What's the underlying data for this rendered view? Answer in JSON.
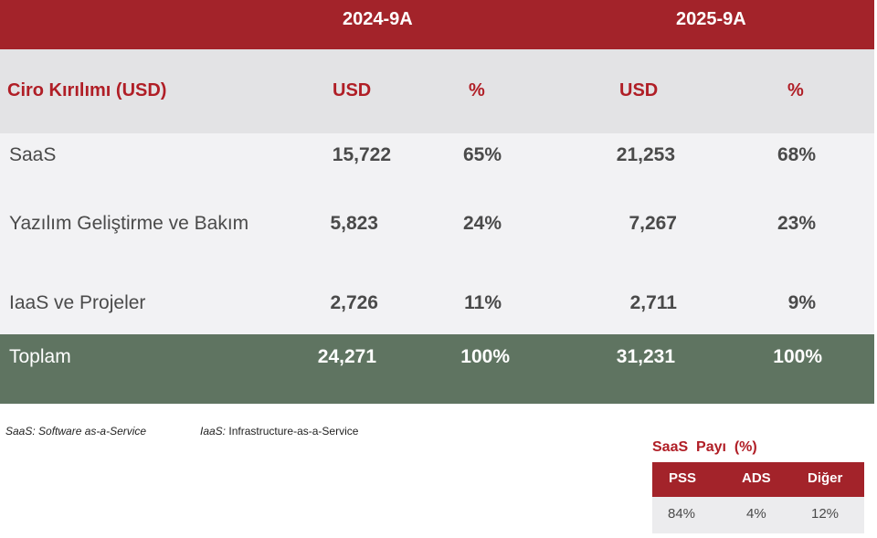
{
  "header": {
    "period_1": "2024-9A",
    "period_2": "2025-9A"
  },
  "columns": {
    "title": "Ciro Kırılımı (USD)",
    "usd_1": "USD",
    "pct_1": "%",
    "usd_2": "USD",
    "pct_2": "%"
  },
  "rows": [
    {
      "label": "SaaS",
      "usd_2024": "15,722",
      "pct_2024": "65%",
      "usd_2025": "21,253",
      "pct_2025": "68%"
    },
    {
      "label": "Yazılım Geliştirme ve Bakım",
      "usd_2024": "5,823",
      "pct_2024": "24%",
      "usd_2025": "7,267",
      "pct_2025": "23%"
    },
    {
      "label": "IaaS ve Projeler",
      "usd_2024": "2,726",
      "pct_2024": "11%",
      "usd_2025": "2,711",
      "pct_2025": "9%"
    }
  ],
  "total": {
    "label": "Toplam",
    "usd_2024": "24,271",
    "pct_2024": "100%",
    "usd_2025": "31,231",
    "pct_2025": "100%"
  },
  "footnotes": {
    "saas_abbr": "SaaS:",
    "saas_text": "Software as-a-Service",
    "iaas_abbr": "IaaS:",
    "iaas_text": "Infrastructure-as-a-Service"
  },
  "saas_share": {
    "title": "SaaS  Payı  (%)",
    "headers": [
      "PSS",
      "ADS",
      "Diğer"
    ],
    "values": [
      "84%",
      "4%",
      "12%"
    ]
  },
  "colors": {
    "header_red": "#a3232a",
    "accent_red": "#b01e26",
    "total_green": "#5f7461",
    "row_gray": "#f2f2f4",
    "header_gray": "#e3e3e5"
  }
}
